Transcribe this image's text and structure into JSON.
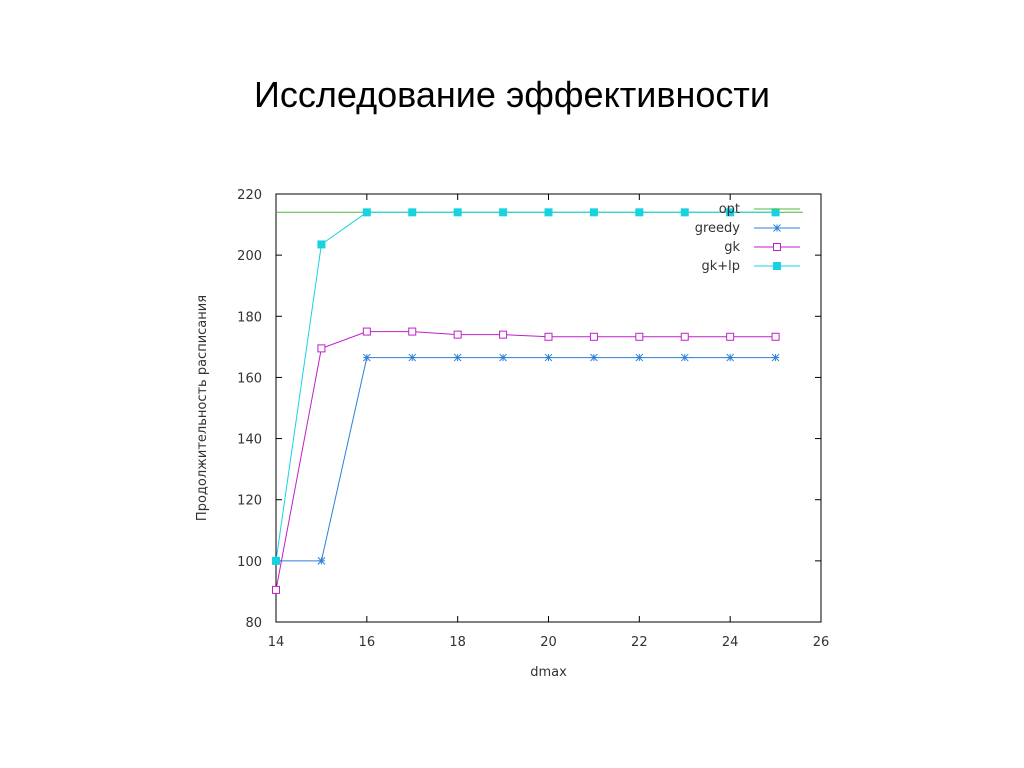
{
  "slide": {
    "title": "Исследование эффективности"
  },
  "chart_data": {
    "type": "line",
    "title": "",
    "xlabel": "dmax",
    "ylabel": "Продолжительность расписания",
    "xlim": [
      14,
      26
    ],
    "ylim": [
      80,
      220
    ],
    "xticks": [
      14,
      16,
      18,
      20,
      22,
      24,
      26
    ],
    "yticks": [
      80,
      100,
      120,
      140,
      160,
      180,
      200,
      220
    ],
    "grid": false,
    "legend_position": "top-right",
    "series": [
      {
        "name": "opt",
        "color": "#4fb83a",
        "marker": "none",
        "x": [
          14,
          25.6
        ],
        "y": [
          214,
          214
        ]
      },
      {
        "name": "greedy",
        "color": "#2b7fd9",
        "marker": "star",
        "x": [
          14,
          15,
          16,
          17,
          18,
          19,
          20,
          21,
          22,
          23,
          24,
          25
        ],
        "y": [
          100,
          100,
          166.5,
          166.5,
          166.5,
          166.5,
          166.5,
          166.5,
          166.5,
          166.5,
          166.5,
          166.5
        ]
      },
      {
        "name": "gk",
        "color": "#c020c8",
        "marker": "open-square",
        "x": [
          14,
          15,
          16,
          17,
          18,
          19,
          20,
          21,
          22,
          23,
          24,
          25
        ],
        "y": [
          90.5,
          169.5,
          175,
          175,
          174,
          174,
          173.3,
          173.3,
          173.3,
          173.3,
          173.3,
          173.3
        ]
      },
      {
        "name": "gk+lp",
        "color": "#17d3e0",
        "marker": "filled-square",
        "x": [
          14,
          15,
          16,
          17,
          18,
          19,
          20,
          21,
          22,
          23,
          24,
          25
        ],
        "y": [
          100,
          203.5,
          214,
          214,
          214,
          214,
          214,
          214,
          214,
          214,
          214,
          214
        ]
      }
    ]
  }
}
